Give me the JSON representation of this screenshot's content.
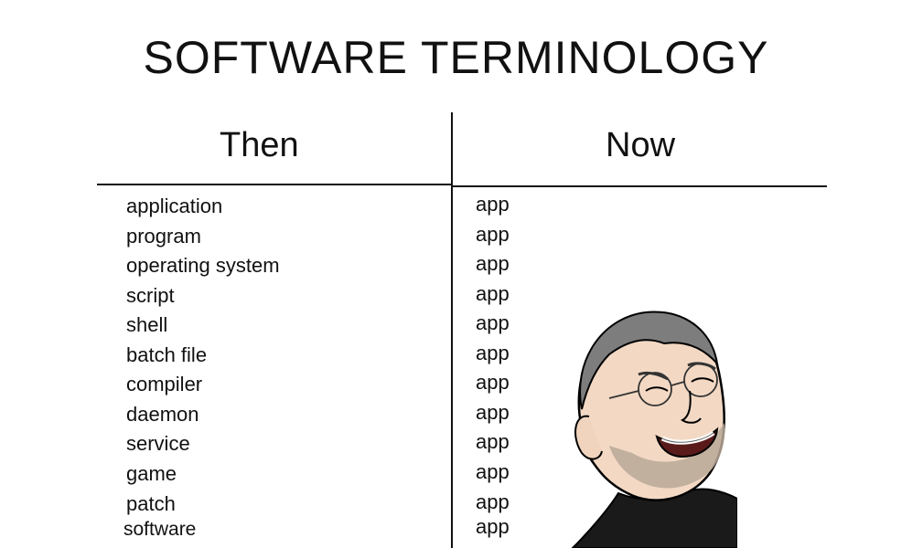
{
  "title": "SOFTWARE TERMINOLOGY",
  "columns": {
    "then": "Then",
    "now": "Now"
  },
  "rows": [
    {
      "then": "application",
      "now": "app"
    },
    {
      "then": "program",
      "now": "app"
    },
    {
      "then": "operating system",
      "now": "app"
    },
    {
      "then": "script",
      "now": "app"
    },
    {
      "then": "shell",
      "now": "app"
    },
    {
      "then": "batch file",
      "now": "app"
    },
    {
      "then": "compiler",
      "now": "app"
    },
    {
      "then": "daemon",
      "now": "app"
    },
    {
      "then": "service",
      "now": "app"
    },
    {
      "then": "game",
      "now": "app"
    },
    {
      "then": "patch",
      "now": "app"
    },
    {
      "then": "software",
      "now": "app"
    }
  ],
  "illustration": "grinning-man-with-glasses-and-turtleneck"
}
